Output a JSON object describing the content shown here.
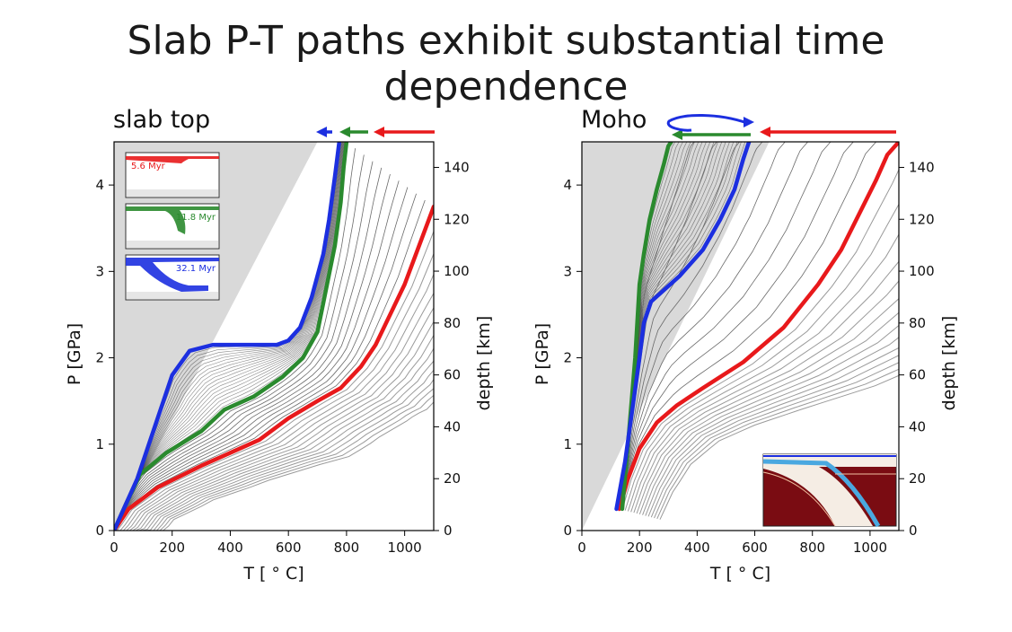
{
  "slide": {
    "title": "Slab P-T paths exhibit substantial time dependence"
  },
  "colors": {
    "red": "#e8191b",
    "green": "#2a8a2e",
    "blue": "#1c2fe0",
    "black": "#111111",
    "gray": "#9a9a9a",
    "shade": "#d9d9d9"
  },
  "chart_data": [
    {
      "type": "line",
      "title": "slab top",
      "xlabel": "T [ ° C]",
      "ylabel": "P [GPa]",
      "ylabel_right": "depth [km]",
      "xlim": [
        0,
        1100
      ],
      "ylim": [
        0,
        4.5
      ],
      "xticks": [
        0,
        200,
        400,
        600,
        800,
        1000
      ],
      "yticks": [
        0,
        1,
        2,
        3,
        4
      ],
      "right_ticks": {
        "values": [
          0,
          20,
          40,
          60,
          80,
          100,
          120,
          140
        ],
        "km_per_gpa": 33.3
      },
      "shaded_region": [
        [
          0,
          0
        ],
        [
          700,
          4.5
        ],
        [
          0,
          4.5
        ]
      ],
      "series": [
        {
          "color_key": "red",
          "x": [
            0,
            50,
            150,
            300,
            500,
            600,
            700,
            780,
            850,
            900,
            950,
            1000,
            1050,
            1100
          ],
          "y": [
            0,
            0.25,
            0.5,
            0.75,
            1.05,
            1.3,
            1.5,
            1.65,
            1.9,
            2.15,
            2.5,
            2.85,
            3.3,
            3.75
          ]
        },
        {
          "color_key": "green",
          "x": [
            0,
            40,
            90,
            180,
            300,
            380,
            480,
            580,
            650,
            700,
            730,
            760,
            780,
            790,
            800
          ],
          "y": [
            0,
            0.3,
            0.65,
            0.9,
            1.15,
            1.4,
            1.55,
            1.78,
            2.0,
            2.3,
            2.8,
            3.3,
            3.8,
            4.2,
            4.5
          ]
        },
        {
          "color_key": "blue",
          "x": [
            0,
            40,
            80,
            120,
            160,
            200,
            260,
            340,
            440,
            560,
            600,
            640,
            680,
            720,
            740,
            760,
            775
          ],
          "y": [
            0,
            0.3,
            0.6,
            1.0,
            1.4,
            1.8,
            2.08,
            2.15,
            2.15,
            2.15,
            2.2,
            2.35,
            2.7,
            3.2,
            3.6,
            4.1,
            4.5
          ]
        }
      ],
      "insets": [
        {
          "label": "5.6 Myr",
          "color_key": "red"
        },
        {
          "label": "11.8 Myr",
          "color_key": "green"
        },
        {
          "label": "32.1 Myr",
          "color_key": "blue"
        }
      ]
    },
    {
      "type": "line",
      "title": "Moho",
      "xlabel": "T [ ° C]",
      "ylabel": "P [GPa]",
      "ylabel_right": "depth [km]",
      "xlim": [
        0,
        1100
      ],
      "ylim": [
        0,
        4.5
      ],
      "xticks": [
        0,
        200,
        400,
        600,
        800,
        1000
      ],
      "yticks": [
        0,
        1,
        2,
        3,
        4
      ],
      "right_ticks": {
        "values": [
          0,
          20,
          40,
          60,
          80,
          100,
          120,
          140
        ],
        "km_per_gpa": 33.3
      },
      "shaded_region": [
        [
          0,
          0
        ],
        [
          650,
          4.5
        ],
        [
          0,
          4.5
        ]
      ],
      "series": [
        {
          "color_key": "red",
          "x": [
            130,
            160,
            200,
            260,
            330,
            420,
            560,
            700,
            820,
            900,
            960,
            1020,
            1060,
            1100
          ],
          "y": [
            0.25,
            0.6,
            0.95,
            1.25,
            1.45,
            1.65,
            1.95,
            2.35,
            2.85,
            3.25,
            3.65,
            4.05,
            4.35,
            4.5
          ]
        },
        {
          "color_key": "green",
          "x": [
            140,
            160,
            185,
            200,
            215,
            235,
            260,
            285,
            300,
            310
          ],
          "y": [
            0.25,
            1.0,
            2.0,
            2.85,
            3.2,
            3.6,
            3.95,
            4.25,
            4.45,
            4.5
          ]
        },
        {
          "color_key": "blue",
          "x": [
            120,
            150,
            175,
            200,
            215,
            240,
            290,
            340,
            420,
            480,
            530,
            560,
            580
          ],
          "y": [
            0.25,
            0.8,
            1.4,
            2.0,
            2.4,
            2.65,
            2.8,
            2.95,
            3.25,
            3.6,
            3.95,
            4.3,
            4.5
          ]
        }
      ]
    }
  ]
}
